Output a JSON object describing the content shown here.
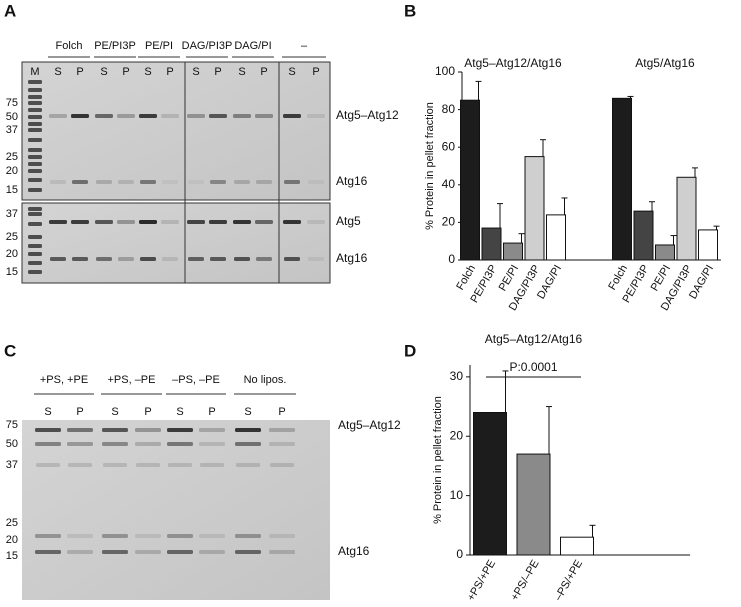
{
  "panel_labels": [
    "A",
    "B",
    "C",
    "D"
  ],
  "gel_a": {
    "headers": [
      "Folch",
      "PE/PI3P",
      "PE/PI",
      "DAG/PI3P",
      "DAG/PI",
      "–"
    ],
    "lanes": [
      "M",
      "S",
      "P",
      "S",
      "P",
      "S",
      "P",
      "S",
      "P",
      "S",
      "P",
      "S",
      "P"
    ],
    "top_markers": [
      "75",
      "50",
      "37",
      "25",
      "20",
      "15"
    ],
    "bottom_markers": [
      "37",
      "25",
      "20",
      "15"
    ],
    "top_bands": [
      "Atg5–Atg12",
      "Atg16"
    ],
    "bottom_bands": [
      "Atg5",
      "Atg16"
    ]
  },
  "gel_c": {
    "headers": [
      "+PS, +PE",
      "+PS, –PE",
      "–PS, –PE",
      "No lipos."
    ],
    "lanes": [
      "S",
      "P",
      "S",
      "P",
      "S",
      "P",
      "S",
      "P"
    ],
    "markers": [
      "75",
      "50",
      "37",
      "25",
      "20",
      "15"
    ],
    "bands": [
      "Atg5–Atg12",
      "Atg16"
    ]
  },
  "chart_data": [
    {
      "type": "bar",
      "y_label": "% Protein in pellet fraction",
      "ylim": [
        0,
        100
      ],
      "yticks": [
        0,
        20,
        40,
        60,
        80,
        100
      ],
      "colors": [
        "#1c1c1c",
        "#444444",
        "#8a8a8a",
        "#cfcfcf",
        "#ffffff"
      ],
      "groups": [
        {
          "title": "Atg5–Atg12/Atg16",
          "categories": [
            "Folch",
            "PE/PI3P",
            "PE/PI",
            "DAG/PI3P",
            "DAG/PI"
          ],
          "values": [
            85,
            17,
            9,
            55,
            24
          ],
          "errors": [
            10,
            13,
            5,
            9,
            9
          ]
        },
        {
          "title": "Atg5/Atg16",
          "categories": [
            "Folch",
            "PE/PI3P",
            "PE/PI",
            "DAG/PI3P",
            "DAG/PI"
          ],
          "values": [
            86,
            26,
            8,
            44,
            16
          ],
          "errors": [
            1,
            5,
            5,
            5,
            2
          ]
        }
      ]
    },
    {
      "type": "bar",
      "title": "Atg5–Atg12/Atg16",
      "y_label": "% Protein in pellet fraction",
      "ylim": [
        0,
        32
      ],
      "yticks": [
        0,
        10,
        20,
        30
      ],
      "annotation": "P:0.0001",
      "colors": [
        "#1c1c1c",
        "#8a8a8a",
        "#ffffff"
      ],
      "groups": [
        {
          "categories": [
            "+PS/+PE",
            "+PS/–PE",
            "–PS/+PE"
          ],
          "values": [
            24,
            17,
            3
          ],
          "errors": [
            7,
            8,
            2
          ]
        }
      ]
    }
  ]
}
